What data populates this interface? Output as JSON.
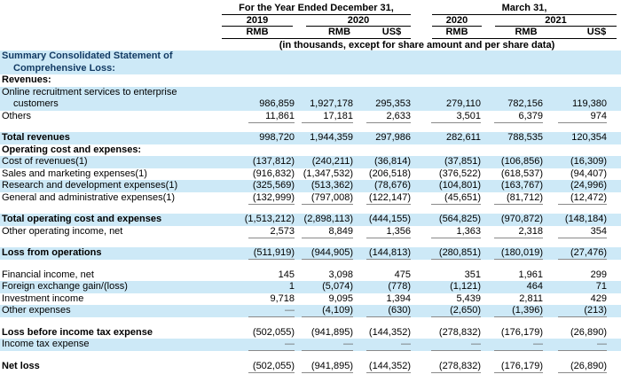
{
  "header": {
    "group1": "For the Year Ended December 31,",
    "group2": "March 31,",
    "years": [
      "2019",
      "2020",
      "2020",
      "2021"
    ],
    "currencies": [
      "RMB",
      "RMB",
      "US$",
      "RMB",
      "RMB",
      "US$"
    ],
    "note": "(in thousands, except for share amount and per share data)"
  },
  "colors": {
    "row_highlight": "#cde9f7",
    "heading_text": "#123a63",
    "body_rule": "#8a8a8a",
    "header_rule": "#000000"
  },
  "table": {
    "rows": [
      {
        "label": "Summary Consolidated Statement of",
        "bold": true,
        "blue": true,
        "navy": true
      },
      {
        "label": "Comprehensive Loss:",
        "indent": true,
        "bold": true,
        "blue": true,
        "navy": true
      },
      {
        "label": "Revenues:",
        "bold": true
      },
      {
        "label": "Online recruitment services to enterprise",
        "blue": true
      },
      {
        "label": "customers",
        "indent": true,
        "blue": true,
        "values": [
          "986,859",
          "1,927,178",
          "295,353",
          "279,110",
          "782,156",
          "119,380"
        ]
      },
      {
        "label": "Others",
        "values": [
          "11,861",
          "17,181",
          "2,633",
          "3,501",
          "6,379",
          "974"
        ],
        "underline": true
      },
      {
        "gap": true
      },
      {
        "label": "Total revenues",
        "bold": true,
        "blue": true,
        "values": [
          "998,720",
          "1,944,359",
          "297,986",
          "282,611",
          "788,535",
          "120,354"
        ]
      },
      {
        "label": "Operating cost and expenses:",
        "bold": true
      },
      {
        "label": "Cost of revenues(1)",
        "blue": true,
        "values": [
          "(137,812)",
          "(240,211)",
          "(36,814)",
          "(37,851)",
          "(106,856)",
          "(16,309)"
        ]
      },
      {
        "label": "Sales and marketing expenses(1)",
        "values": [
          "(916,832)",
          "(1,347,532)",
          "(206,518)",
          "(376,522)",
          "(618,537)",
          "(94,407)"
        ]
      },
      {
        "label": "Research and development expenses(1)",
        "blue": true,
        "values": [
          "(325,569)",
          "(513,362)",
          "(78,676)",
          "(104,801)",
          "(163,767)",
          "(24,996)"
        ]
      },
      {
        "label": "General and administrative expenses(1)",
        "values": [
          "(132,999)",
          "(797,008)",
          "(122,147)",
          "(45,651)",
          "(81,712)",
          "(12,472)"
        ],
        "underline": true
      },
      {
        "gap": true
      },
      {
        "label": "Total operating cost and expenses",
        "bold": true,
        "blue": true,
        "values": [
          "(1,513,212)",
          "(2,898,113)",
          "(444,155)",
          "(564,825)",
          "(970,872)",
          "(148,184)"
        ]
      },
      {
        "label": "Other operating income, net",
        "values": [
          "2,573",
          "8,849",
          "1,356",
          "1,363",
          "2,318",
          "354"
        ],
        "underline": true
      },
      {
        "gap": true
      },
      {
        "label": "Loss from operations",
        "bold": true,
        "blue": true,
        "values": [
          "(511,919)",
          "(944,905)",
          "(144,813)",
          "(280,851)",
          "(180,019)",
          "(27,476)"
        ],
        "underline": true
      },
      {
        "gap": true
      },
      {
        "label": "Financial income, net",
        "values": [
          "145",
          "3,098",
          "475",
          "351",
          "1,961",
          "299"
        ]
      },
      {
        "label": "Foreign exchange gain/(loss)",
        "blue": true,
        "values": [
          "1",
          "(5,074)",
          "(778)",
          "(1,121)",
          "464",
          "71"
        ]
      },
      {
        "label": "Investment income",
        "values": [
          "9,718",
          "9,095",
          "1,394",
          "5,439",
          "2,811",
          "429"
        ]
      },
      {
        "label": "Other expenses",
        "blue": true,
        "values": [
          "—",
          "(4,109)",
          "(630)",
          "(2,650)",
          "(1,396)",
          "(213)"
        ],
        "underline": true
      },
      {
        "gap": true
      },
      {
        "label": "Loss before income tax expense",
        "bold": true,
        "values": [
          "(502,055)",
          "(941,895)",
          "(144,352)",
          "(278,832)",
          "(176,179)",
          "(26,890)"
        ]
      },
      {
        "label": "Income tax expense",
        "blue": true,
        "values": [
          "—",
          "—",
          "—",
          "—",
          "—",
          "—"
        ],
        "underline": true
      },
      {
        "gap": true
      },
      {
        "label": "Net loss",
        "bold": true,
        "values": [
          "(502,055)",
          "(941,895)",
          "(144,352)",
          "(278,832)",
          "(176,179)",
          "(26,890)"
        ],
        "underline": true
      }
    ]
  }
}
